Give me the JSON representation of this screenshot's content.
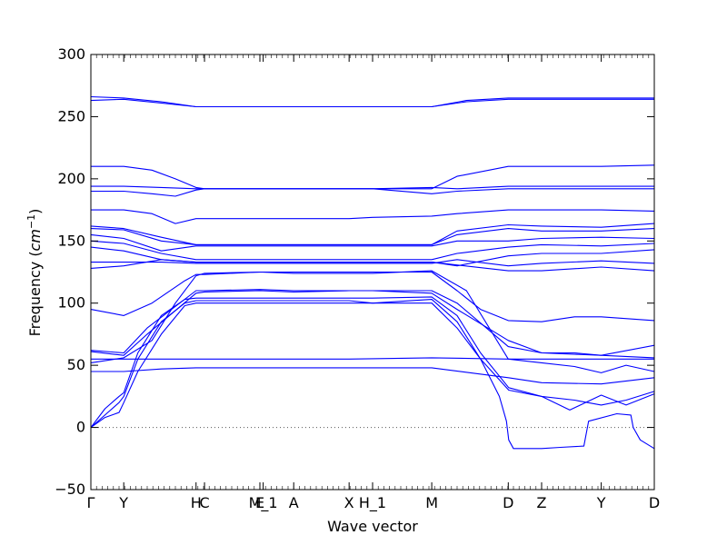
{
  "chart_data": {
    "type": "line",
    "title": "",
    "xlabel": "Wave vector",
    "ylabel": "Frequency (cm⁻¹)",
    "ylabel_prefix": "Frequency (",
    "ylabel_unit_base": "cm",
    "ylabel_unit_sup": "−1",
    "ylabel_suffix": ")",
    "ylim": [
      -50,
      300
    ],
    "xlim": [
      0,
      12
    ],
    "yticks": [
      -50,
      0,
      50,
      100,
      150,
      200,
      250,
      300
    ],
    "ytick_labels": [
      "−50",
      "0",
      "50",
      "100",
      "150",
      "200",
      "250",
      "300"
    ],
    "xticks": [
      {
        "x": 0.0,
        "label": "Γ"
      },
      {
        "x": 0.7,
        "label": "Y"
      },
      {
        "x": 2.24,
        "label": "H"
      },
      {
        "x": 2.42,
        "label": "C"
      },
      {
        "x": 3.6,
        "label": "E"
      },
      {
        "x": 3.67,
        "label": "M_1"
      },
      {
        "x": 4.32,
        "label": "A"
      },
      {
        "x": 5.5,
        "label": "X"
      },
      {
        "x": 6.0,
        "label": "H_1"
      },
      {
        "x": 7.26,
        "label": "M"
      },
      {
        "x": 8.89,
        "label": "D"
      },
      {
        "x": 9.6,
        "label": "Z"
      },
      {
        "x": 10.87,
        "label": "Y"
      },
      {
        "x": 12.0,
        "label": "D"
      }
    ],
    "zero_line": true,
    "line_color": "#0000ff",
    "series": [
      {
        "x": [
          0,
          0.3,
          0.6,
          0.7,
          1.0,
          1.5,
          2.0,
          2.24,
          2.42,
          3.6,
          4.32,
          5.5,
          6.0,
          7.26,
          7.8,
          8.3,
          8.7,
          8.85,
          8.9,
          9.0,
          9.6,
          10.0,
          10.5,
          10.6,
          11.2,
          11.5,
          11.55,
          11.7,
          12.0
        ],
        "y": [
          0,
          8,
          12,
          20,
          45,
          75,
          98,
          100,
          100,
          100,
          100,
          100,
          100,
          100,
          80,
          55,
          25,
          5,
          -10,
          -17,
          -17,
          -16,
          -15,
          5,
          11,
          10,
          0,
          -10,
          -17
        ]
      },
      {
        "x": [
          0,
          0.3,
          0.6,
          0.7,
          1.0,
          1.5,
          2.0,
          2.24,
          2.42,
          3.6,
          4.32,
          5.5,
          6.0,
          7.26,
          7.8,
          8.3,
          8.9,
          9.6,
          10.2,
          10.87,
          11.4,
          12.0
        ],
        "y": [
          0,
          10,
          20,
          25,
          55,
          85,
          100,
          102,
          102,
          102,
          102,
          102,
          100,
          103,
          85,
          55,
          30,
          25,
          14,
          26,
          18,
          27
        ]
      },
      {
        "x": [
          0,
          0.3,
          0.6,
          0.7,
          1.0,
          1.5,
          2.0,
          2.24,
          2.42,
          3.6,
          4.32,
          5.5,
          6.0,
          7.26,
          7.8,
          8.3,
          8.9,
          9.6,
          10.3,
          10.87,
          11.4,
          12.0
        ],
        "y": [
          0,
          15,
          25,
          28,
          60,
          90,
          103,
          104,
          104,
          104,
          104,
          104,
          104,
          105,
          90,
          60,
          32,
          25,
          22,
          18,
          22,
          29
        ]
      },
      {
        "x": [
          0,
          0.7,
          1.5,
          2.24,
          2.42,
          3.6,
          4.32,
          5.5,
          6.0,
          7.26,
          8.89,
          9.6,
          10.87,
          12.0
        ],
        "y": [
          45,
          45,
          47,
          48,
          48,
          48,
          48,
          48,
          48,
          48,
          40,
          36,
          35,
          40
        ]
      },
      {
        "x": [
          0,
          0.7,
          1.3,
          1.8,
          2.24,
          2.42,
          3.6,
          4.32,
          5.5,
          6.0,
          7.26,
          8.0,
          8.89,
          9.6,
          10.3,
          10.87,
          11.4,
          12.0
        ],
        "y": [
          52,
          56,
          70,
          100,
          122,
          124,
          125,
          124,
          124,
          124,
          126,
          110,
          55,
          52,
          49,
          44,
          50,
          45
        ]
      },
      {
        "x": [
          0,
          0.7,
          2.24,
          3.6,
          5.5,
          7.26,
          8.89,
          9.6,
          10.87,
          12.0
        ],
        "y": [
          55,
          55,
          55,
          55,
          55,
          56,
          55,
          55,
          55,
          55
        ]
      },
      {
        "x": [
          0,
          0.7,
          1.2,
          2.24,
          2.42,
          3.6,
          4.32,
          5.5,
          6.0,
          7.26,
          7.8,
          8.89,
          9.6,
          10.87,
          12.0
        ],
        "y": [
          62,
          60,
          80,
          110,
          110,
          111,
          110,
          110,
          110,
          110,
          100,
          65,
          60,
          58,
          56
        ]
      },
      {
        "x": [
          0,
          0.7,
          1.2,
          2.24,
          2.42,
          3.6,
          4.32,
          5.5,
          6.0,
          7.26,
          7.8,
          8.89,
          9.6,
          10.3,
          10.87,
          12.0
        ],
        "y": [
          61,
          58,
          75,
          108,
          109,
          110,
          109,
          110,
          110,
          108,
          95,
          70,
          60,
          60,
          58,
          66
        ]
      },
      {
        "x": [
          0,
          0.7,
          1.3,
          2.0,
          2.24,
          2.42,
          3.6,
          4.32,
          5.5,
          6.0,
          7.26,
          7.8,
          8.3,
          8.89,
          9.6,
          10.3,
          10.87,
          12.0
        ],
        "y": [
          95,
          90,
          100,
          118,
          123,
          123,
          125,
          125,
          125,
          125,
          125,
          110,
          95,
          86,
          85,
          89,
          89,
          86
        ]
      },
      {
        "x": [
          0,
          0.7,
          1.5,
          2.24,
          2.42,
          3.6,
          4.32,
          5.5,
          6.0,
          7.26,
          8.89,
          9.6,
          10.87,
          12.0
        ],
        "y": [
          128,
          130,
          135,
          133,
          133,
          133,
          133,
          133,
          133,
          133,
          126,
          126,
          129,
          126
        ]
      },
      {
        "x": [
          0,
          0.7,
          1.5,
          2.24,
          2.42,
          3.6,
          4.32,
          5.5,
          6.0,
          7.26,
          7.8,
          8.89,
          9.6,
          10.87,
          12.0
        ],
        "y": [
          133,
          133,
          133,
          132,
          132,
          132,
          132,
          132,
          132,
          132,
          135,
          130,
          132,
          134,
          132
        ]
      },
      {
        "x": [
          0,
          0.7,
          1.5,
          2.24,
          2.42,
          3.6,
          4.32,
          5.5,
          6.0,
          7.26,
          7.8,
          8.89,
          9.6,
          10.87,
          12.0
        ],
        "y": [
          145,
          142,
          135,
          133,
          133,
          133,
          133,
          133,
          133,
          133,
          130,
          138,
          140,
          140,
          143
        ]
      },
      {
        "x": [
          0,
          0.7,
          1.5,
          2.24,
          2.42,
          3.6,
          4.32,
          5.5,
          6.0,
          7.26,
          7.8,
          8.89,
          9.6,
          10.87,
          12.0
        ],
        "y": [
          150,
          148,
          140,
          135,
          135,
          135,
          135,
          135,
          135,
          135,
          140,
          145,
          147,
          146,
          148
        ]
      },
      {
        "x": [
          0,
          0.7,
          1.5,
          2.24,
          2.42,
          3.6,
          4.32,
          5.5,
          6.0,
          7.26,
          7.8,
          8.89,
          9.6,
          10.87,
          12.0
        ],
        "y": [
          155,
          152,
          142,
          146,
          146,
          146,
          146,
          146,
          146,
          146,
          150,
          150,
          152,
          153,
          152
        ]
      },
      {
        "x": [
          0,
          0.7,
          1.5,
          2.24,
          2.42,
          3.6,
          4.32,
          5.5,
          6.0,
          7.26,
          7.8,
          8.89,
          9.6,
          10.87,
          12.0
        ],
        "y": [
          160,
          159,
          150,
          147,
          147,
          147,
          147,
          147,
          147,
          147,
          155,
          160,
          158,
          158,
          160
        ]
      },
      {
        "x": [
          0,
          0.7,
          1.5,
          2.24,
          2.42,
          3.6,
          4.32,
          5.5,
          6.0,
          7.26,
          7.8,
          8.89,
          9.6,
          10.87,
          12.0
        ],
        "y": [
          162,
          160,
          153,
          147,
          147,
          147,
          147,
          147,
          147,
          147,
          158,
          163,
          162,
          161,
          164
        ]
      },
      {
        "x": [
          0,
          0.7,
          1.3,
          1.8,
          2.24,
          2.42,
          3.6,
          4.32,
          5.5,
          6.0,
          7.26,
          7.8,
          8.89,
          9.6,
          10.87,
          12.0
        ],
        "y": [
          175,
          175,
          172,
          164,
          168,
          168,
          168,
          168,
          168,
          169,
          170,
          172,
          175,
          175,
          175,
          174
        ]
      },
      {
        "x": [
          0,
          0.7,
          1.3,
          1.8,
          2.24,
          2.42,
          3.6,
          4.32,
          5.5,
          6.0,
          7.26,
          7.8,
          8.89,
          9.6,
          10.87,
          12.0
        ],
        "y": [
          190,
          190,
          188,
          186,
          191,
          192,
          192,
          192,
          192,
          192,
          188,
          190,
          192,
          192,
          192,
          192
        ]
      },
      {
        "x": [
          0,
          0.7,
          1.5,
          2.24,
          2.42,
          3.6,
          4.32,
          5.5,
          6.0,
          7.26,
          7.8,
          8.89,
          9.6,
          10.87,
          12.0
        ],
        "y": [
          194,
          194,
          193,
          192,
          192,
          192,
          192,
          192,
          192,
          193,
          192,
          194,
          194,
          194,
          194
        ]
      },
      {
        "x": [
          0,
          0.7,
          1.3,
          1.8,
          2.24,
          2.42,
          3.6,
          4.32,
          5.5,
          6.0,
          7.26,
          7.8,
          8.89,
          9.6,
          10.87,
          12.0
        ],
        "y": [
          210,
          210,
          207,
          200,
          193,
          192,
          192,
          192,
          192,
          192,
          192,
          202,
          210,
          210,
          210,
          211
        ]
      },
      {
        "x": [
          0,
          0.7,
          1.5,
          2.24,
          2.42,
          3.6,
          4.32,
          5.5,
          6.0,
          7.26,
          8.0,
          8.89,
          9.6,
          10.87,
          12.0
        ],
        "y": [
          263,
          264,
          261,
          258,
          258,
          258,
          258,
          258,
          258,
          258,
          262,
          264,
          264,
          264,
          264
        ]
      },
      {
        "x": [
          0,
          0.7,
          1.5,
          2.24,
          2.42,
          3.6,
          4.32,
          5.5,
          6.0,
          7.26,
          8.0,
          8.89,
          9.6,
          10.87,
          12.0
        ],
        "y": [
          266,
          265,
          262,
          258,
          258,
          258,
          258,
          258,
          258,
          258,
          263,
          265,
          265,
          265,
          265
        ]
      }
    ]
  }
}
